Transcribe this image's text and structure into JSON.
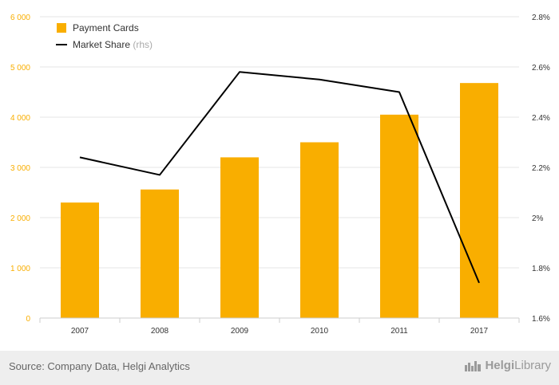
{
  "chart_data": {
    "type": "bar",
    "categories": [
      "2007",
      "2008",
      "2009",
      "2010",
      "2011",
      "2017"
    ],
    "series": [
      {
        "name": "Payment Cards",
        "type": "bar",
        "axis": "left",
        "values": [
          2300,
          2560,
          3200,
          3500,
          4050,
          4680
        ]
      },
      {
        "name": "Market Share",
        "type": "line",
        "axis": "right",
        "values": [
          2.24,
          2.17,
          2.58,
          2.55,
          2.5,
          1.74
        ]
      }
    ],
    "legend": [
      {
        "label": "Payment Cards",
        "suffix": ""
      },
      {
        "label": "Market Share",
        "suffix": "(rhs)"
      }
    ],
    "legend_position": "top-left",
    "y_left": {
      "min": 0,
      "max": 6000,
      "ticks": [
        0,
        1000,
        2000,
        3000,
        4000,
        5000,
        6000
      ],
      "tick_labels": [
        "0",
        "1 000",
        "2 000",
        "3 000",
        "4 000",
        "5 000",
        "6 000"
      ]
    },
    "y_right": {
      "min": 1.6,
      "max": 2.8,
      "ticks": [
        1.6,
        1.8,
        2.0,
        2.2,
        2.4,
        2.6,
        2.8
      ],
      "tick_labels": [
        "1.6%",
        "1.8%",
        "2%",
        "2.2%",
        "2.4%",
        "2.6%",
        "2.8%"
      ]
    },
    "grid": true,
    "colors": {
      "bar": "#f9ae00",
      "line": "#000000",
      "left_axis_text": "#f9ae00",
      "right_axis_text": "#333333",
      "grid": "#e6e6e6"
    }
  },
  "footer": {
    "source": "Source: Company Data, Helgi Analytics",
    "brand_prefix": "Helgi",
    "brand_suffix": "Library",
    "brand_icon": "city-skyline-icon"
  }
}
